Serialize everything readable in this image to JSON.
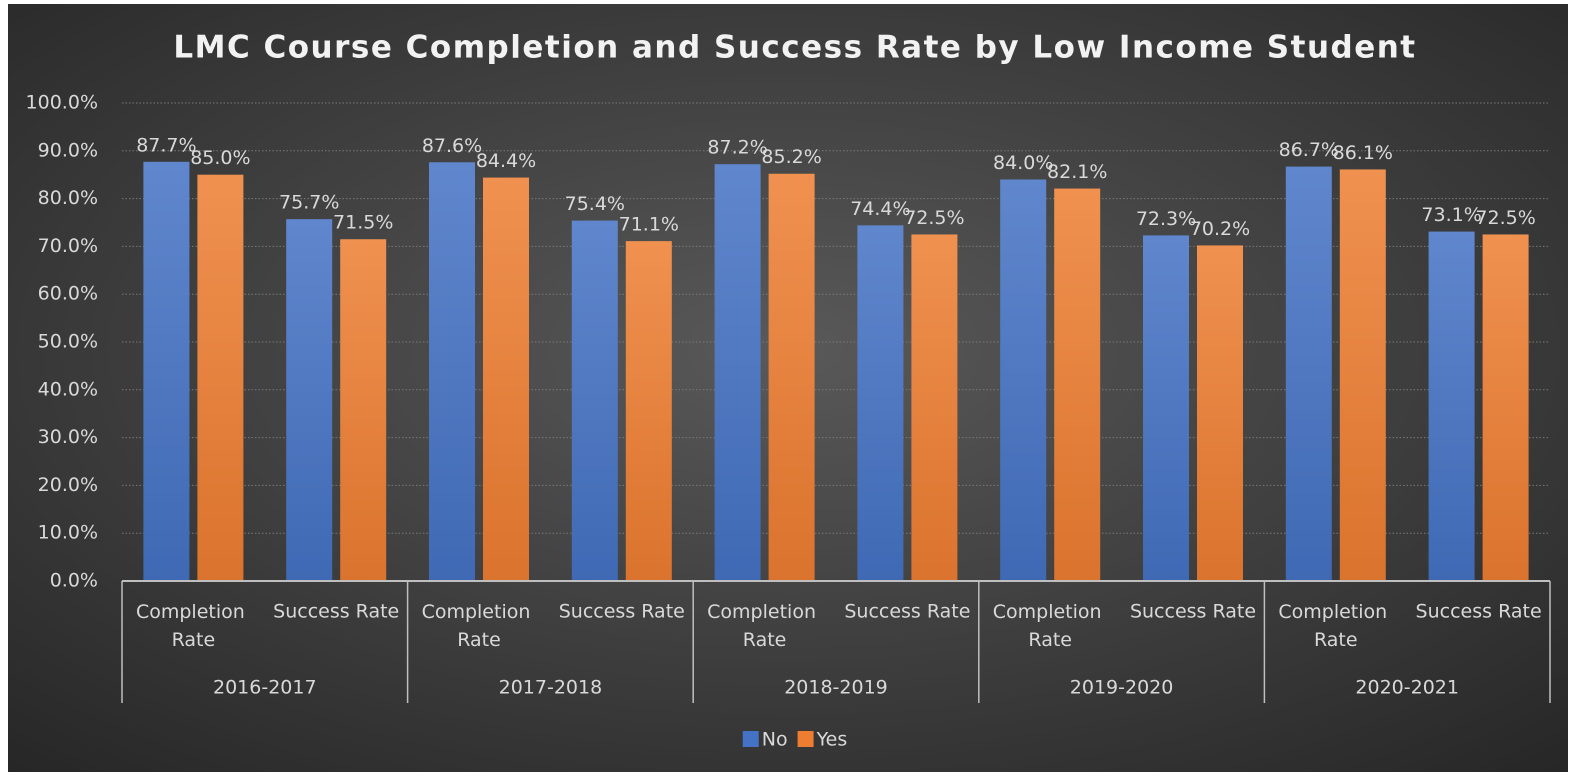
{
  "chart_data": {
    "type": "bar",
    "title": "LMC Course Completion and Success Rate by Low Income Student",
    "categories": [
      "Completion Rate",
      "Success Rate",
      "Completion Rate",
      "Success Rate",
      "Completion Rate",
      "Success Rate",
      "Completion Rate",
      "Success Rate",
      "Completion Rate",
      "Success Rate"
    ],
    "category_groups": [
      "2016-2017",
      "2017-2018",
      "2018-2019",
      "2019-2020",
      "2020-2021"
    ],
    "series": [
      {
        "name": "No",
        "color": "#4472c4",
        "values": [
          87.7,
          75.7,
          87.6,
          75.4,
          87.2,
          74.4,
          84.0,
          72.3,
          86.7,
          73.1
        ],
        "value_labels": [
          "87.7%",
          "75.7%",
          "87.6%",
          "75.4%",
          "87.2%",
          "74.4%",
          "84.0%",
          "72.3%",
          "86.7%",
          "73.1%"
        ]
      },
      {
        "name": "Yes",
        "color": "#ed7d31",
        "values": [
          85.0,
          71.5,
          84.4,
          71.1,
          85.2,
          72.5,
          82.1,
          70.2,
          86.1,
          72.5
        ],
        "value_labels": [
          "85.0%",
          "71.5%",
          "84.4%",
          "71.1%",
          "85.2%",
          "72.5%",
          "82.1%",
          "70.2%",
          "86.1%",
          "72.5%"
        ]
      }
    ],
    "ylim": [
      0,
      100
    ],
    "yticks": [
      {
        "value": 0,
        "label": "0.0%"
      },
      {
        "value": 10,
        "label": "10.0%"
      },
      {
        "value": 20,
        "label": "20.0%"
      },
      {
        "value": 30,
        "label": "30.0%"
      },
      {
        "value": 40,
        "label": "40.0%"
      },
      {
        "value": 50,
        "label": "50.0%"
      },
      {
        "value": 60,
        "label": "60.0%"
      },
      {
        "value": 70,
        "label": "70.0%"
      },
      {
        "value": 80,
        "label": "80.0%"
      },
      {
        "value": 90,
        "label": "90.0%"
      },
      {
        "value": 100,
        "label": "100.0%"
      }
    ],
    "grid": true,
    "legend": "bottom"
  }
}
